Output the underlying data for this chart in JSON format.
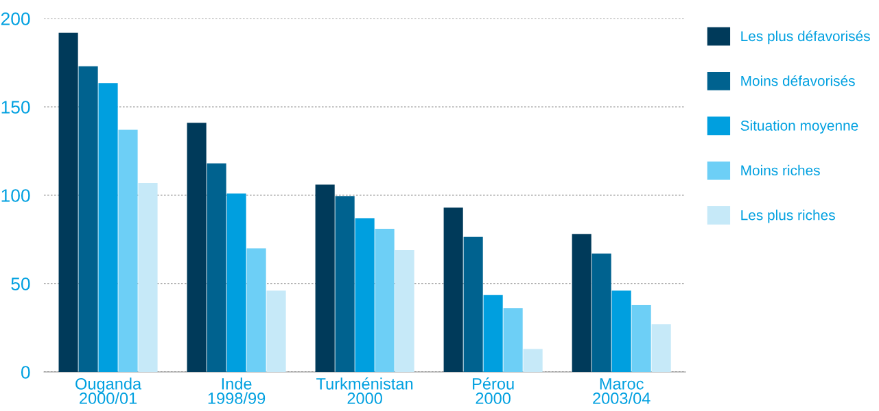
{
  "chart_data": {
    "type": "bar",
    "categories": [
      "Ouganda\n2000/01",
      "Inde\n1998/99",
      "Turkménistan\n2000",
      "Pérou\n2000",
      "Maroc\n2003/04"
    ],
    "series": [
      {
        "name": "Les plus défavorisés",
        "color": "#003a5a",
        "values": [
          192,
          141,
          106,
          93,
          78
        ]
      },
      {
        "name": "Moins défavorisés",
        "color": "#00628f",
        "values": [
          173,
          118,
          99.5,
          76.5,
          67
        ]
      },
      {
        "name": "Situation moyenne",
        "color": "#009fdf",
        "values": [
          163.5,
          101,
          87,
          43.5,
          46
        ]
      },
      {
        "name": "Moins riches",
        "color": "#6dcff6",
        "values": [
          137,
          70,
          81,
          36,
          38
        ]
      },
      {
        "name": "Les plus riches",
        "color": "#c6e9f8",
        "values": [
          107,
          46,
          69,
          13,
          27
        ]
      }
    ],
    "ylim": [
      0,
      200
    ],
    "yticks": [
      0,
      50,
      100,
      150,
      200
    ],
    "grid": "y",
    "legend": "top right"
  }
}
